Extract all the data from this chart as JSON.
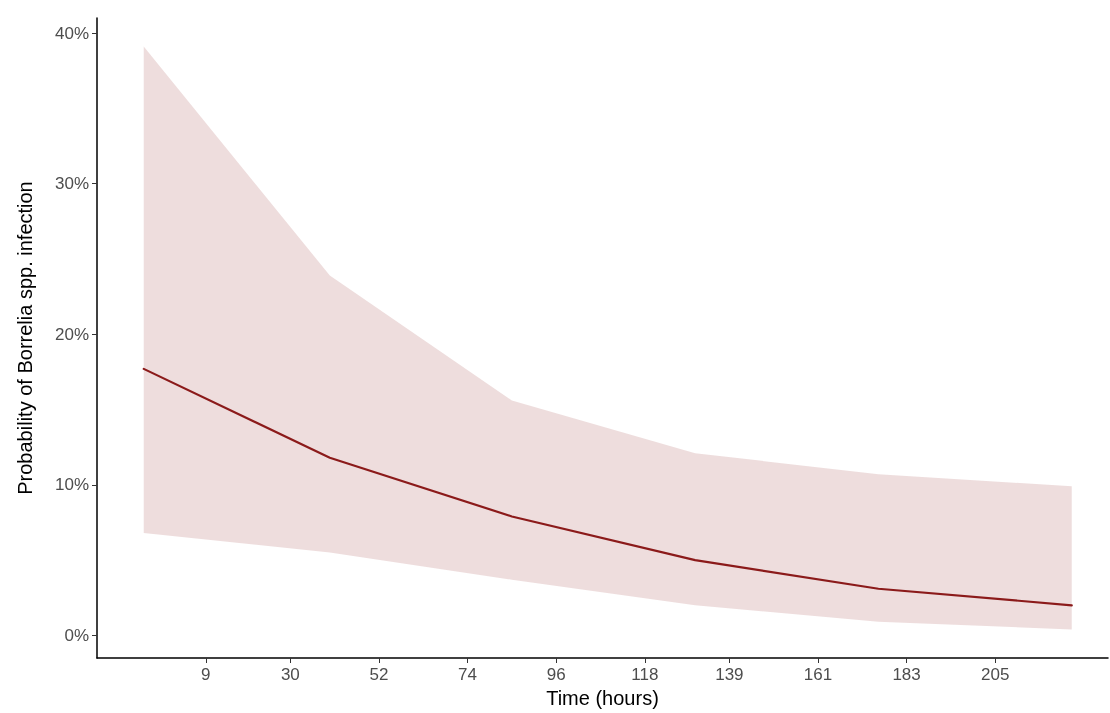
{
  "chart_data": {
    "type": "line",
    "xlabel": "Time (hours)",
    "ylabel": "Probability of Borrelia spp. infection",
    "x": [
      -6.4,
      39.8,
      85,
      130.5,
      176,
      224
    ],
    "series": [
      {
        "color": "#8b1a1a",
        "values": [
          17.7,
          11.8,
          7.9,
          5.0,
          3.1,
          2.0
        ],
        "lower": [
          6.8,
          5.5,
          3.7,
          2.0,
          0.9,
          0.4
        ],
        "upper": [
          39.1,
          23.9,
          15.6,
          12.1,
          10.7,
          9.9
        ]
      }
    ],
    "xlim": [
      -18,
      233
    ],
    "xticks": [
      9,
      30,
      52,
      74,
      96,
      118,
      139,
      161,
      183,
      205
    ],
    "ylim": [
      -1.5,
      41
    ],
    "yticks": [
      {
        "value": 0,
        "label": "0%"
      },
      {
        "value": 10,
        "label": "10%"
      },
      {
        "value": 20,
        "label": "20%"
      },
      {
        "value": 30,
        "label": "30%"
      },
      {
        "value": 40,
        "label": "40%"
      }
    ],
    "grid": false,
    "marker": "none",
    "line_style": "solid"
  }
}
